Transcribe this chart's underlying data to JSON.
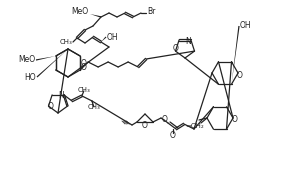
{
  "background_color": "#ffffff",
  "line_color": "#222222",
  "line_width": 0.9,
  "font_size": 5.5,
  "fig_width": 2.81,
  "fig_height": 1.73,
  "dpi": 100,
  "xlim": [
    0,
    281
  ],
  "ylim": [
    0,
    173
  ]
}
